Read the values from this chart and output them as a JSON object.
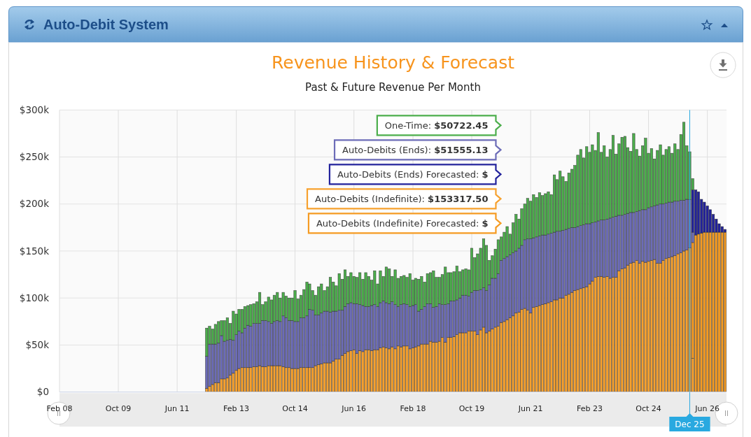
{
  "chart_data": {
    "type": "bar",
    "stacked": true,
    "title": "Revenue History & Forecast",
    "subtitle": "Past & Future Revenue Per Month",
    "annotations": [
      "Auto-Debit System",
      "One-Time: $50722.45",
      "Auto-Debits (Ends): $51555.13",
      "Auto-Debits (Ends) Forecasted: $",
      "Auto-Debits (Indefinite): $153317.50",
      "Auto-Debits (Indefinite) Forecasted: $"
    ],
    "x": [
      "2012-04",
      "2012-05",
      "2012-06",
      "2012-07",
      "2012-08",
      "2012-09",
      "2012-10",
      "2012-11",
      "2012-12",
      "2013-01",
      "2013-02",
      "2013-03",
      "2013-04",
      "2013-05",
      "2013-06",
      "2013-07",
      "2013-08",
      "2013-09",
      "2013-10",
      "2013-11",
      "2013-12",
      "2014-01",
      "2014-02",
      "2014-03",
      "2014-04",
      "2014-05",
      "2014-06",
      "2014-07",
      "2014-08",
      "2014-09",
      "2014-10",
      "2014-11",
      "2014-12",
      "2015-01",
      "2015-02",
      "2015-03",
      "2015-04",
      "2015-05",
      "2015-06",
      "2015-07",
      "2015-08",
      "2015-09",
      "2015-10",
      "2015-11",
      "2015-12",
      "2016-01",
      "2016-02",
      "2016-03",
      "2016-04",
      "2016-05",
      "2016-06",
      "2016-07",
      "2016-08",
      "2016-09",
      "2016-10",
      "2016-11",
      "2016-12",
      "2017-01",
      "2017-02",
      "2017-03",
      "2017-04",
      "2017-05",
      "2017-06",
      "2017-07",
      "2017-08",
      "2017-09",
      "2017-10",
      "2017-11",
      "2017-12",
      "2018-01",
      "2018-02",
      "2018-03",
      "2018-04",
      "2018-05",
      "2018-06",
      "2018-07",
      "2018-08",
      "2018-09",
      "2018-10",
      "2018-11",
      "2018-12",
      "2019-01",
      "2019-02",
      "2019-03",
      "2019-04",
      "2019-05",
      "2019-06",
      "2019-07",
      "2019-08",
      "2019-09",
      "2019-10",
      "2019-11",
      "2019-12",
      "2020-01",
      "2020-02",
      "2020-03",
      "2020-04",
      "2020-05",
      "2020-06",
      "2020-07",
      "2020-08",
      "2020-09",
      "2020-10",
      "2020-11",
      "2020-12",
      "2021-01",
      "2021-02",
      "2021-03",
      "2021-04",
      "2021-05",
      "2021-06",
      "2021-07",
      "2021-08",
      "2021-09",
      "2021-10",
      "2021-11",
      "2021-12",
      "2022-01",
      "2022-02",
      "2022-03",
      "2022-04",
      "2022-05",
      "2022-06",
      "2022-07",
      "2022-08",
      "2022-09",
      "2022-10",
      "2022-11",
      "2022-12",
      "2023-01",
      "2023-02",
      "2023-03",
      "2023-04",
      "2023-05",
      "2023-06",
      "2023-07",
      "2023-08",
      "2023-09",
      "2023-10",
      "2023-11",
      "2023-12",
      "2024-01",
      "2024-02",
      "2024-03",
      "2024-04",
      "2024-05",
      "2024-06",
      "2024-07",
      "2024-08",
      "2024-09",
      "2024-10",
      "2024-11",
      "2024-12",
      "2025-01",
      "2025-02",
      "2025-03",
      "2025-04",
      "2025-05",
      "2025-06",
      "2025-07",
      "2025-08",
      "2025-09",
      "2025-10",
      "2025-11",
      "2025-12",
      "2026-01",
      "2026-02",
      "2026-03",
      "2026-04",
      "2026-05",
      "2026-06",
      "2026-07",
      "2026-08",
      "2026-09",
      "2026-10",
      "2026-11",
      "2026-12"
    ],
    "series": [
      {
        "color": "#f7a12e",
        "values": [
          4000,
          6000,
          8000,
          10000,
          10000,
          14000,
          14000,
          15000,
          18000,
          20000,
          23000,
          25000,
          26000,
          26000,
          26000,
          26000,
          27000,
          27000,
          28000,
          27000,
          27000,
          28000,
          28000,
          28000,
          28000,
          28000,
          27000,
          26000,
          26000,
          25000,
          25000,
          25000,
          26000,
          26000,
          26000,
          26000,
          26000,
          28000,
          29000,
          30000,
          31000,
          31000,
          31000,
          33000,
          35000,
          35000,
          39000,
          41000,
          43000,
          44000,
          45000,
          41000,
          44000,
          43000,
          45000,
          45000,
          44000,
          45000,
          45000,
          47000,
          48000,
          47000,
          46000,
          48000,
          46000,
          49000,
          48000,
          49000,
          49000,
          46000,
          47000,
          48000,
          49000,
          51000,
          51000,
          51000,
          54000,
          53000,
          53000,
          54000,
          58000,
          53000,
          58000,
          58000,
          59000,
          61000,
          63000,
          63000,
          63000,
          65000,
          65000,
          65000,
          61000,
          66000,
          69000,
          63000,
          65000,
          67000,
          69000,
          70000,
          74000,
          75000,
          77000,
          79000,
          81000,
          84000,
          85000,
          88000,
          89000,
          87000,
          84000,
          90000,
          91000,
          92000,
          93000,
          94000,
          95000,
          96000,
          98000,
          98000,
          100000,
          100000,
          103000,
          104000,
          106000,
          108000,
          109000,
          110000,
          111000,
          112000,
          115000,
          118000,
          122000,
          123000,
          123000,
          122000,
          123000,
          121000,
          122000,
          122000,
          129000,
          131000,
          132000,
          135000,
          137000,
          138000,
          140000,
          137000,
          139000,
          138000,
          139000,
          140000,
          141000,
          137000,
          137000,
          140000,
          142000,
          143000,
          144000,
          145000,
          147000,
          148000,
          150000,
          151000,
          153317.5,
          36000,
          null,
          null,
          null,
          null,
          null,
          null,
          null,
          null,
          null,
          null,
          null
        ]
      },
      {
        "color": "#f59b22",
        "values": [
          null,
          null,
          null,
          null,
          null,
          null,
          null,
          null,
          null,
          null,
          null,
          null,
          null,
          null,
          null,
          null,
          null,
          null,
          null,
          null,
          null,
          null,
          null,
          null,
          null,
          null,
          null,
          null,
          null,
          null,
          null,
          null,
          null,
          null,
          null,
          null,
          null,
          null,
          null,
          null,
          null,
          null,
          null,
          null,
          null,
          null,
          null,
          null,
          null,
          null,
          null,
          null,
          null,
          null,
          null,
          null,
          null,
          null,
          null,
          null,
          null,
          null,
          null,
          null,
          null,
          null,
          null,
          null,
          null,
          null,
          null,
          null,
          null,
          null,
          null,
          null,
          null,
          null,
          null,
          null,
          null,
          null,
          null,
          null,
          null,
          null,
          null,
          null,
          null,
          null,
          null,
          null,
          null,
          null,
          null,
          null,
          null,
          null,
          null,
          null,
          null,
          null,
          null,
          null,
          null,
          null,
          null,
          null,
          null,
          null,
          null,
          null,
          null,
          null,
          null,
          null,
          null,
          null,
          null,
          null,
          null,
          null,
          null,
          null,
          null,
          null,
          null,
          null,
          null,
          null,
          null,
          null,
          null,
          null,
          null,
          null,
          null,
          null,
          null,
          null,
          null,
          null,
          null,
          null,
          null,
          null,
          null,
          null,
          null,
          null,
          null,
          null,
          null,
          null,
          null,
          null,
          null,
          null,
          null,
          null,
          null,
          null,
          null,
          null,
          null,
          123000,
          167000,
          168000,
          169000,
          170000,
          170000,
          170000,
          170000,
          170000,
          170000,
          170000,
          170000
        ]
      },
      {
        "color": "#6c6cb8",
        "values": [
          34000,
          45000,
          43000,
          41000,
          42000,
          46000,
          40000,
          40000,
          38000,
          35000,
          38000,
          40000,
          37000,
          42000,
          45000,
          44000,
          46000,
          46000,
          45000,
          49000,
          49000,
          47000,
          45000,
          47000,
          48000,
          47000,
          54000,
          53000,
          50000,
          51000,
          50000,
          50000,
          53000,
          53000,
          55000,
          62000,
          61000,
          54000,
          53000,
          54000,
          55000,
          55000,
          54000,
          53000,
          51000,
          52000,
          48000,
          50000,
          51000,
          51000,
          49000,
          53000,
          49000,
          49000,
          46000,
          46000,
          48000,
          48000,
          46000,
          48000,
          49000,
          48000,
          48000,
          48000,
          47000,
          42000,
          45000,
          45000,
          44000,
          45000,
          45000,
          45000,
          37000,
          37000,
          40000,
          43000,
          40000,
          37000,
          38000,
          40000,
          35000,
          40000,
          36000,
          39000,
          38000,
          37000,
          37000,
          40000,
          40000,
          37000,
          41000,
          43000,
          47000,
          43000,
          42000,
          45000,
          49000,
          54000,
          52000,
          56000,
          66000,
          67000,
          67000,
          67000,
          67000,
          66000,
          68000,
          68000,
          73000,
          76000,
          79000,
          74000,
          74000,
          74000,
          74000,
          73000,
          73000,
          73000,
          72000,
          73000,
          71000,
          72000,
          70000,
          70000,
          69000,
          67000,
          67000,
          67000,
          67000,
          67000,
          64000,
          62000,
          59000,
          59000,
          60000,
          61000,
          61000,
          64000,
          64000,
          65000,
          59000,
          57000,
          57000,
          55000,
          54000,
          53000,
          52000,
          56000,
          55000,
          56000,
          57000,
          57000,
          57000,
          62000,
          63000,
          60000,
          59000,
          59000,
          58000,
          58000,
          56000,
          56000,
          54000,
          54000,
          51555.13,
          11000,
          null,
          null,
          null,
          null,
          null,
          null,
          null,
          null,
          null,
          null,
          null
        ]
      },
      {
        "color": "#22229c",
        "values": [
          null,
          null,
          null,
          null,
          null,
          null,
          null,
          null,
          null,
          null,
          null,
          null,
          null,
          null,
          null,
          null,
          null,
          null,
          null,
          null,
          null,
          null,
          null,
          null,
          null,
          null,
          null,
          null,
          null,
          null,
          null,
          null,
          null,
          null,
          null,
          null,
          null,
          null,
          null,
          null,
          null,
          null,
          null,
          null,
          null,
          null,
          null,
          null,
          null,
          null,
          null,
          null,
          null,
          null,
          null,
          null,
          null,
          null,
          null,
          null,
          null,
          null,
          null,
          null,
          null,
          null,
          null,
          null,
          null,
          null,
          null,
          null,
          null,
          null,
          null,
          null,
          null,
          null,
          null,
          null,
          null,
          null,
          null,
          null,
          null,
          null,
          null,
          null,
          null,
          null,
          null,
          null,
          null,
          null,
          null,
          null,
          null,
          null,
          null,
          null,
          null,
          null,
          null,
          null,
          null,
          null,
          null,
          null,
          null,
          null,
          null,
          null,
          null,
          null,
          null,
          null,
          null,
          null,
          null,
          null,
          null,
          null,
          null,
          null,
          null,
          null,
          null,
          null,
          null,
          null,
          null,
          null,
          null,
          null,
          null,
          null,
          null,
          null,
          null,
          null,
          null,
          null,
          null,
          null,
          null,
          null,
          null,
          null,
          null,
          null,
          null,
          null,
          null,
          null,
          null,
          null,
          null,
          null,
          null,
          null,
          null,
          null,
          null,
          null,
          null,
          45000,
          48000,
          45000,
          36000,
          32000,
          28000,
          24000,
          19000,
          14000,
          9000,
          6000,
          3000
        ]
      },
      {
        "color": "#4cae4c",
        "values": [
          30000,
          19000,
          16000,
          21000,
          23000,
          16000,
          22000,
          24000,
          17000,
          31000,
          22000,
          23000,
          25000,
          23000,
          21000,
          23000,
          21000,
          23000,
          33000,
          17000,
          20000,
          26000,
          25000,
          28000,
          30000,
          25000,
          25000,
          23000,
          24000,
          24000,
          33000,
          24000,
          24000,
          30000,
          36000,
          27000,
          21000,
          21000,
          30000,
          31000,
          22000,
          26000,
          37000,
          31000,
          27000,
          39000,
          33000,
          39000,
          29000,
          32000,
          29000,
          28000,
          34000,
          28000,
          36000,
          32000,
          27000,
          36000,
          24000,
          34000,
          26000,
          38000,
          37000,
          27000,
          37000,
          30000,
          30000,
          30000,
          29000,
          35000,
          27000,
          28000,
          34000,
          35000,
          26000,
          32000,
          33000,
          39000,
          31000,
          28000,
          32000,
          40000,
          33000,
          30000,
          31000,
          36000,
          28000,
          27000,
          28000,
          28000,
          47000,
          35000,
          39000,
          44000,
          52000,
          48000,
          26000,
          24000,
          31000,
          36000,
          25000,
          28000,
          32000,
          22000,
          32000,
          39000,
          31000,
          39000,
          38000,
          43000,
          40000,
          46000,
          42000,
          46000,
          42000,
          44000,
          45000,
          41000,
          61000,
          55000,
          64000,
          57000,
          51000,
          59000,
          62000,
          66000,
          76000,
          81000,
          71000,
          82000,
          76000,
          83000,
          76000,
          94000,
          72000,
          79000,
          66000,
          73000,
          87000,
          66000,
          76000,
          83000,
          83000,
          70000,
          65000,
          84000,
          66000,
          58000,
          68000,
          76000,
          58000,
          62000,
          50000,
          58000,
          63000,
          52000,
          57000,
          59000,
          52000,
          61000,
          55000,
          70000,
          83000,
          57000,
          50722.45,
          12000,
          null,
          null,
          null,
          null,
          null,
          null,
          null,
          null,
          null,
          null,
          null
        ]
      }
    ],
    "xlim": [
      "2008-02",
      "2026-12-16"
    ],
    "xticks": [
      {
        "value": "2008-02",
        "label": "Feb 08"
      },
      {
        "value": "2009-10",
        "label": "Oct 09"
      },
      {
        "value": "2011-06",
        "label": "Jun 11"
      },
      {
        "value": "2013-02",
        "label": "Feb 13"
      },
      {
        "value": "2014-10",
        "label": "Oct 14"
      },
      {
        "value": "2016-06",
        "label": "Jun 16"
      },
      {
        "value": "2018-02",
        "label": "Feb 18"
      },
      {
        "value": "2019-10",
        "label": "Oct 19"
      },
      {
        "value": "2021-06",
        "label": "Jun 21"
      },
      {
        "value": "2023-02",
        "label": "Feb 23"
      },
      {
        "value": "2024-10",
        "label": "Oct 24"
      },
      {
        "value": "2026-06",
        "label": "Jun 26"
      }
    ],
    "ylim": [
      0,
      300000
    ],
    "yticks": [
      {
        "value": 0,
        "label": "$0"
      },
      {
        "value": 50000,
        "label": "$50k"
      },
      {
        "value": 100000,
        "label": "$100k"
      },
      {
        "value": 150000,
        "label": "$150k"
      },
      {
        "value": 200000,
        "label": "$200k"
      },
      {
        "value": 250000,
        "label": "$250k"
      },
      {
        "value": 300000,
        "label": "$300k"
      }
    ],
    "grid": true,
    "ref_lines": [
      {
        "axis": "x",
        "value": "2025-12",
        "label": "Dec 25",
        "color": "#29a9e0"
      }
    ]
  }
}
